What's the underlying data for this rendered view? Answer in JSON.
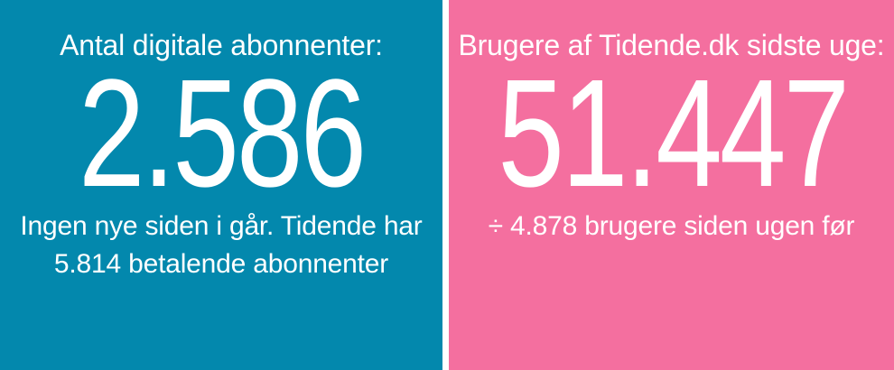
{
  "left_panel": {
    "label": "Antal digitale abonnenter:",
    "value": "2.586",
    "sub_line1": "Ingen nye siden i går. Tidende har",
    "sub_line2": "5.814 betalende abonnenter",
    "background_color": "#0388ad"
  },
  "right_panel": {
    "label": "Brugere af Tidende.dk sidste uge:",
    "value": "51.447",
    "sub_line1": "÷ 4.878 brugere siden ugen før",
    "background_color": "#f46f9f"
  }
}
